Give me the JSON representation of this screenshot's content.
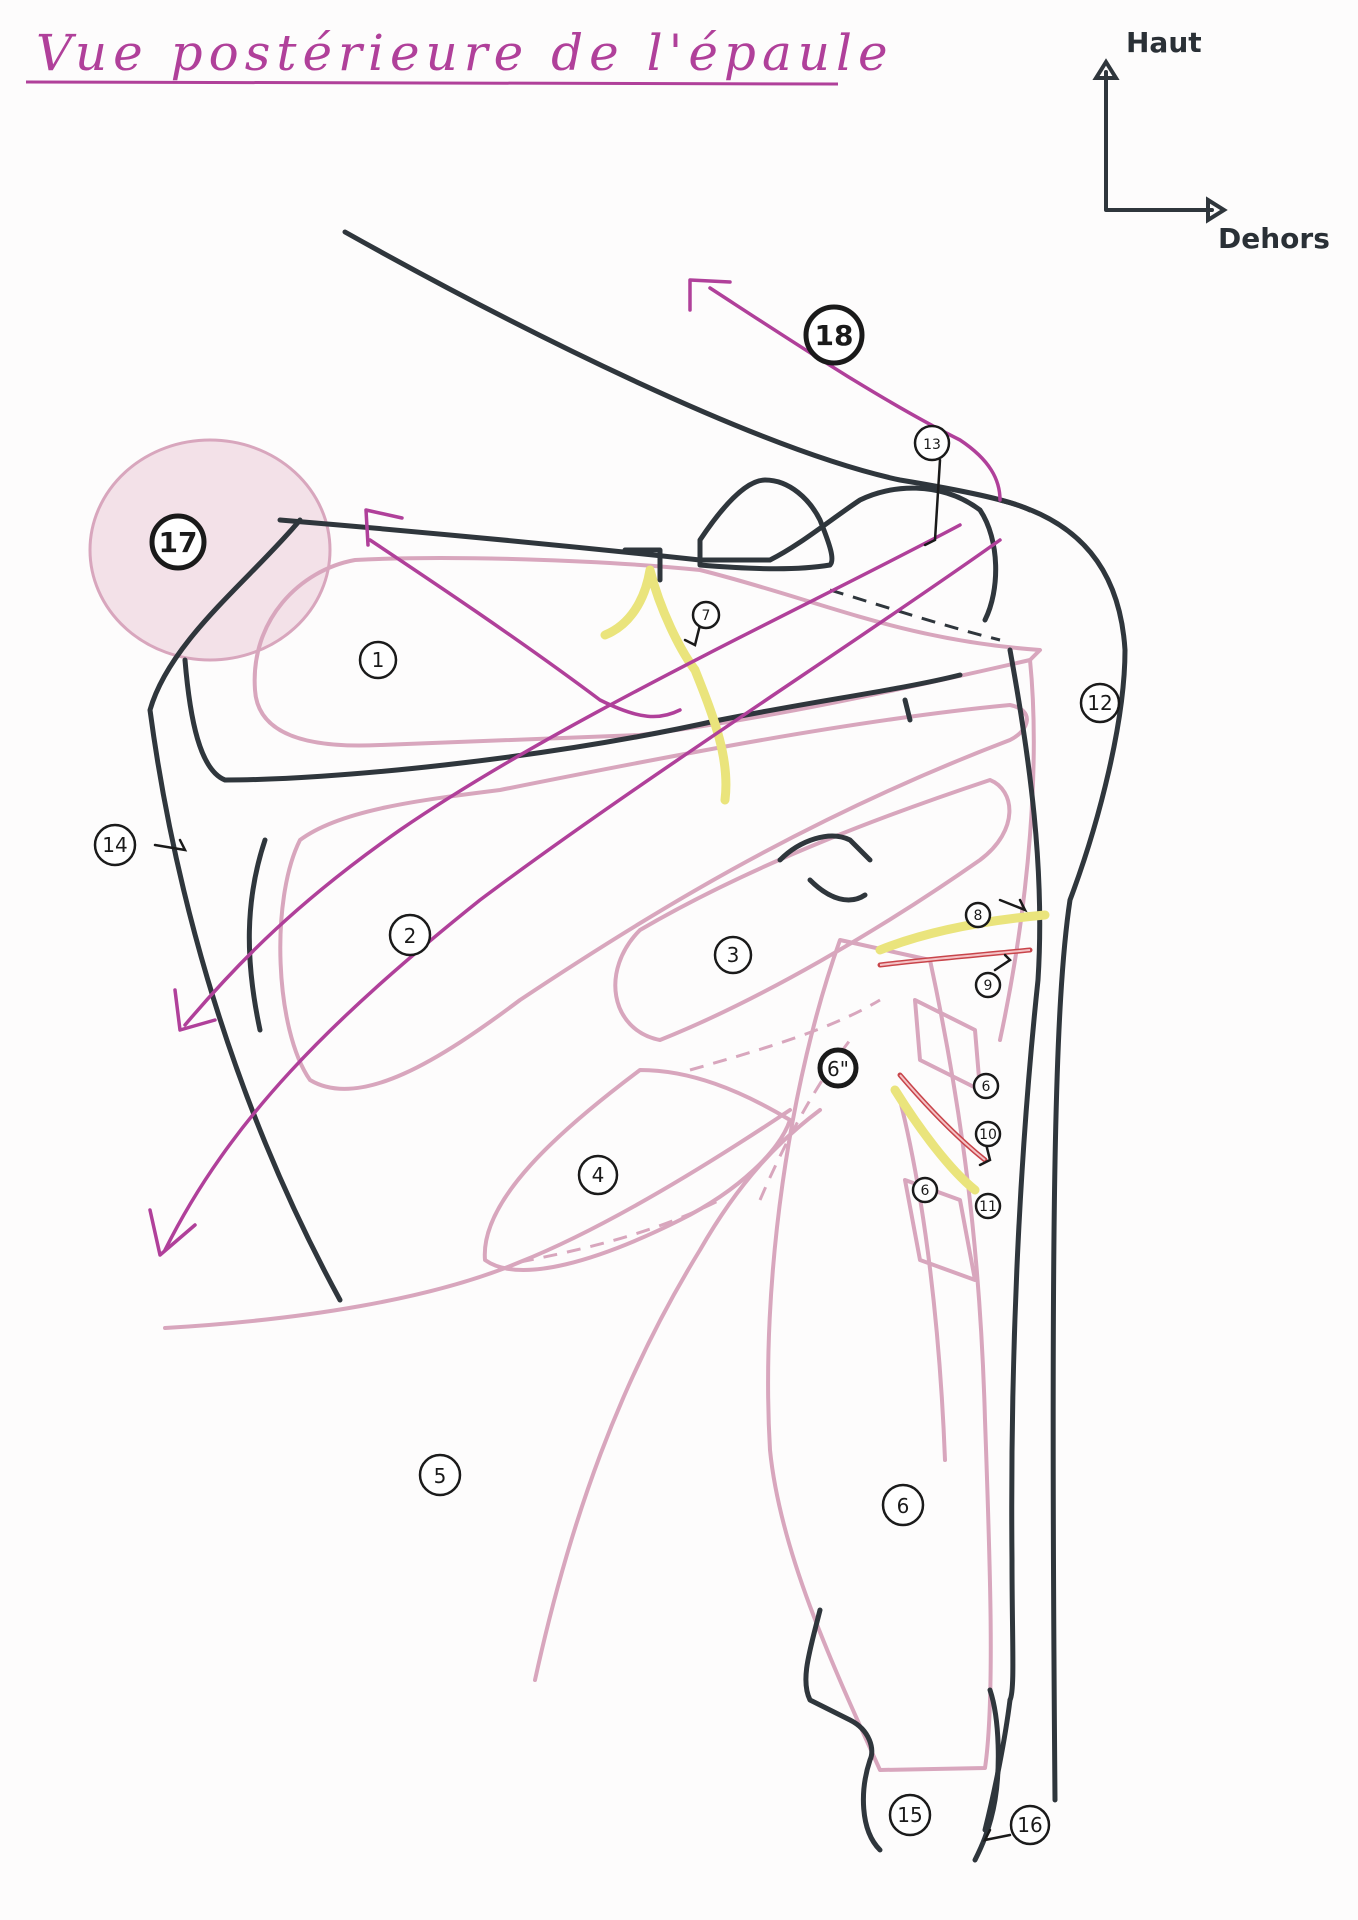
{
  "title": "Vue postérieure de l'épaule",
  "orientation": {
    "up": "Haut",
    "out": "Dehors"
  },
  "colors": {
    "bone": "#2f363c",
    "muscle": "#d8a6bd",
    "arrow": "#b0409a",
    "nerve": "#eae47c",
    "artery": "#c8444a"
  },
  "labels": {
    "l1": "1",
    "l2": "2",
    "l3": "3",
    "l4": "4",
    "l5": "5",
    "l6a": "6",
    "l6b": "6",
    "l6c": "6",
    "l6d": "6\"",
    "l7": "7",
    "l8": "8",
    "l9": "9",
    "l10": "10",
    "l11": "11",
    "l12": "12",
    "l13": "13",
    "l14": "14",
    "l15": "15",
    "l16": "16",
    "l17": "17",
    "l18": "18"
  }
}
